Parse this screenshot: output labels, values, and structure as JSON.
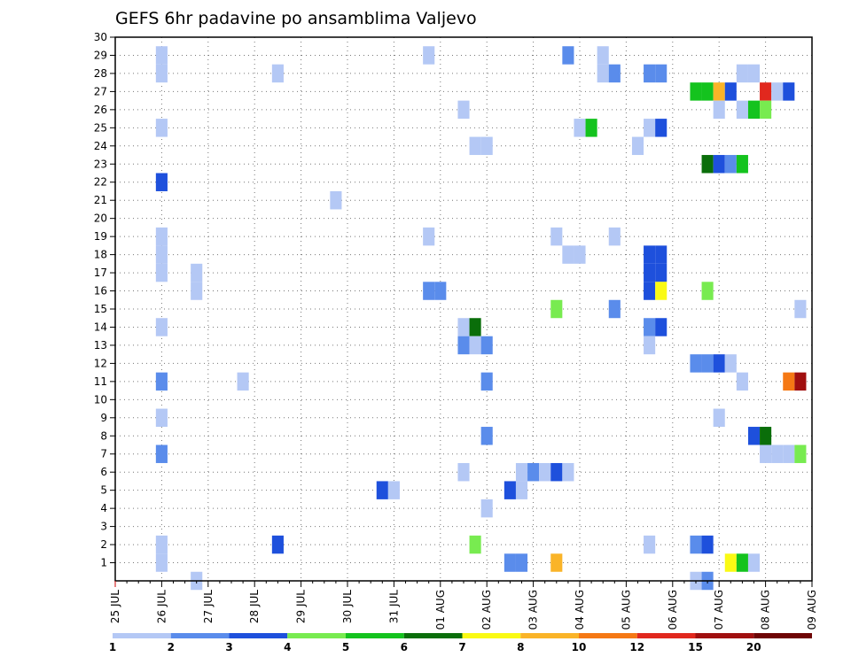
{
  "chart_data": {
    "type": "heatmap",
    "title": "GEFS 6hr padavine po ansamblima Valjevo",
    "xlabel": "",
    "ylabel": "",
    "x_ticks": [
      "25 JUL",
      "26 JUL",
      "27 JUL",
      "28 JUL",
      "29 JUL",
      "30 JUL",
      "31 JUL",
      "01 AUG",
      "02 AUG",
      "03 AUG",
      "04 AUG",
      "05 AUG",
      "06 AUG",
      "07 AUG",
      "08 AUG",
      "09 AUG"
    ],
    "y_ticks": [
      1,
      2,
      3,
      4,
      5,
      6,
      7,
      8,
      9,
      10,
      11,
      12,
      13,
      14,
      15,
      16,
      17,
      18,
      19,
      20,
      21,
      22,
      23,
      24,
      25,
      26,
      27,
      28,
      29,
      30
    ],
    "grid": true,
    "legend_position": "bottom",
    "legend": {
      "labels": [
        "1",
        "2",
        "3",
        "4",
        "5",
        "6",
        "7",
        "8",
        "10",
        "12",
        "15",
        "20"
      ],
      "colors": [
        "#b4c8f5",
        "#5a8ceb",
        "#1e50dc",
        "#78eb50",
        "#14c31e",
        "#0a6e0a",
        "#fafa14",
        "#fab428",
        "#f57814",
        "#e1281e",
        "#a00f0f",
        "#6e0505"
      ]
    },
    "units_note": "x = day index since 25 JUL (4 steps per day); y = ensemble member; level = precipitation color class",
    "cells": [
      [
        1.0,
        1,
        1
      ],
      [
        1.0,
        2,
        1
      ],
      [
        1.0,
        7,
        2
      ],
      [
        1.0,
        9,
        1
      ],
      [
        1.0,
        11,
        2
      ],
      [
        1.0,
        14,
        1
      ],
      [
        1.0,
        17,
        1
      ],
      [
        1.0,
        18,
        1
      ],
      [
        1.0,
        19,
        1
      ],
      [
        1.0,
        22,
        3
      ],
      [
        1.0,
        25,
        1
      ],
      [
        1.0,
        28,
        1
      ],
      [
        1.0,
        29,
        1
      ],
      [
        1.75,
        0,
        1
      ],
      [
        1.75,
        17,
        1
      ],
      [
        1.75,
        16,
        1
      ],
      [
        2.75,
        11,
        1
      ],
      [
        3.5,
        28,
        1
      ],
      [
        3.5,
        2,
        3
      ],
      [
        4.75,
        21,
        1
      ],
      [
        5.75,
        5,
        3
      ],
      [
        6.0,
        5,
        1
      ],
      [
        6.75,
        29,
        1
      ],
      [
        6.75,
        19,
        1
      ],
      [
        6.75,
        16,
        2
      ],
      [
        7.0,
        16,
        2
      ],
      [
        7.5,
        26,
        1
      ],
      [
        7.5,
        14,
        1
      ],
      [
        7.5,
        13,
        2
      ],
      [
        7.5,
        6,
        1
      ],
      [
        7.75,
        24,
        1
      ],
      [
        7.75,
        14,
        6
      ],
      [
        7.75,
        13,
        1
      ],
      [
        7.75,
        2,
        4
      ],
      [
        8.0,
        24,
        1
      ],
      [
        8.0,
        13,
        2
      ],
      [
        8.0,
        11,
        2
      ],
      [
        8.0,
        8,
        2
      ],
      [
        8.0,
        4,
        1
      ],
      [
        8.5,
        5,
        3
      ],
      [
        8.5,
        1,
        2
      ],
      [
        8.75,
        6,
        1
      ],
      [
        8.75,
        5,
        1
      ],
      [
        8.75,
        1,
        2
      ],
      [
        9.0,
        6,
        2
      ],
      [
        9.25,
        6,
        1
      ],
      [
        9.5,
        6,
        3
      ],
      [
        9.5,
        15,
        4
      ],
      [
        9.5,
        19,
        1
      ],
      [
        9.5,
        1,
        8
      ],
      [
        9.75,
        6,
        1
      ],
      [
        9.75,
        18,
        1
      ],
      [
        9.75,
        29,
        2
      ],
      [
        10.0,
        18,
        1
      ],
      [
        10.0,
        25,
        1
      ],
      [
        10.25,
        25,
        5
      ],
      [
        10.5,
        29,
        1
      ],
      [
        10.5,
        28,
        1
      ],
      [
        10.75,
        28,
        2
      ],
      [
        10.75,
        19,
        1
      ],
      [
        10.75,
        15,
        2
      ],
      [
        11.25,
        24,
        1
      ],
      [
        11.5,
        28,
        2
      ],
      [
        11.5,
        25,
        1
      ],
      [
        11.5,
        14,
        2
      ],
      [
        11.5,
        13,
        1
      ],
      [
        11.5,
        18,
        3
      ],
      [
        11.5,
        17,
        3
      ],
      [
        11.5,
        16,
        3
      ],
      [
        11.5,
        2,
        1
      ],
      [
        11.75,
        28,
        2
      ],
      [
        11.75,
        25,
        3
      ],
      [
        11.75,
        14,
        3
      ],
      [
        11.75,
        18,
        3
      ],
      [
        11.75,
        17,
        3
      ],
      [
        11.75,
        16,
        7
      ],
      [
        12.5,
        27,
        5
      ],
      [
        12.5,
        12,
        2
      ],
      [
        12.5,
        2,
        2
      ],
      [
        12.5,
        0,
        1
      ],
      [
        12.75,
        27,
        5
      ],
      [
        12.75,
        23,
        6
      ],
      [
        12.75,
        16,
        4
      ],
      [
        12.75,
        12,
        2
      ],
      [
        12.75,
        2,
        3
      ],
      [
        12.75,
        0,
        2
      ],
      [
        13.0,
        27,
        8
      ],
      [
        13.0,
        26,
        1
      ],
      [
        13.0,
        23,
        3
      ],
      [
        13.0,
        12,
        3
      ],
      [
        13.0,
        9,
        1
      ],
      [
        13.25,
        27,
        3
      ],
      [
        13.25,
        23,
        2
      ],
      [
        13.25,
        12,
        1
      ],
      [
        13.25,
        1,
        7
      ],
      [
        13.5,
        28,
        1
      ],
      [
        13.5,
        26,
        1
      ],
      [
        13.5,
        23,
        5
      ],
      [
        13.5,
        11,
        1
      ],
      [
        13.5,
        1,
        5
      ],
      [
        13.75,
        28,
        1
      ],
      [
        13.75,
        26,
        5
      ],
      [
        13.75,
        8,
        3
      ],
      [
        13.75,
        1,
        1
      ],
      [
        14.0,
        27,
        10
      ],
      [
        14.0,
        26,
        4
      ],
      [
        14.0,
        8,
        6
      ],
      [
        14.0,
        7,
        1
      ],
      [
        14.25,
        27,
        1
      ],
      [
        14.25,
        7,
        1
      ],
      [
        14.5,
        27,
        3
      ],
      [
        14.5,
        11,
        9
      ],
      [
        14.5,
        7,
        1
      ],
      [
        14.75,
        11,
        11
      ],
      [
        14.75,
        7,
        4
      ],
      [
        14.75,
        15,
        1
      ]
    ]
  }
}
